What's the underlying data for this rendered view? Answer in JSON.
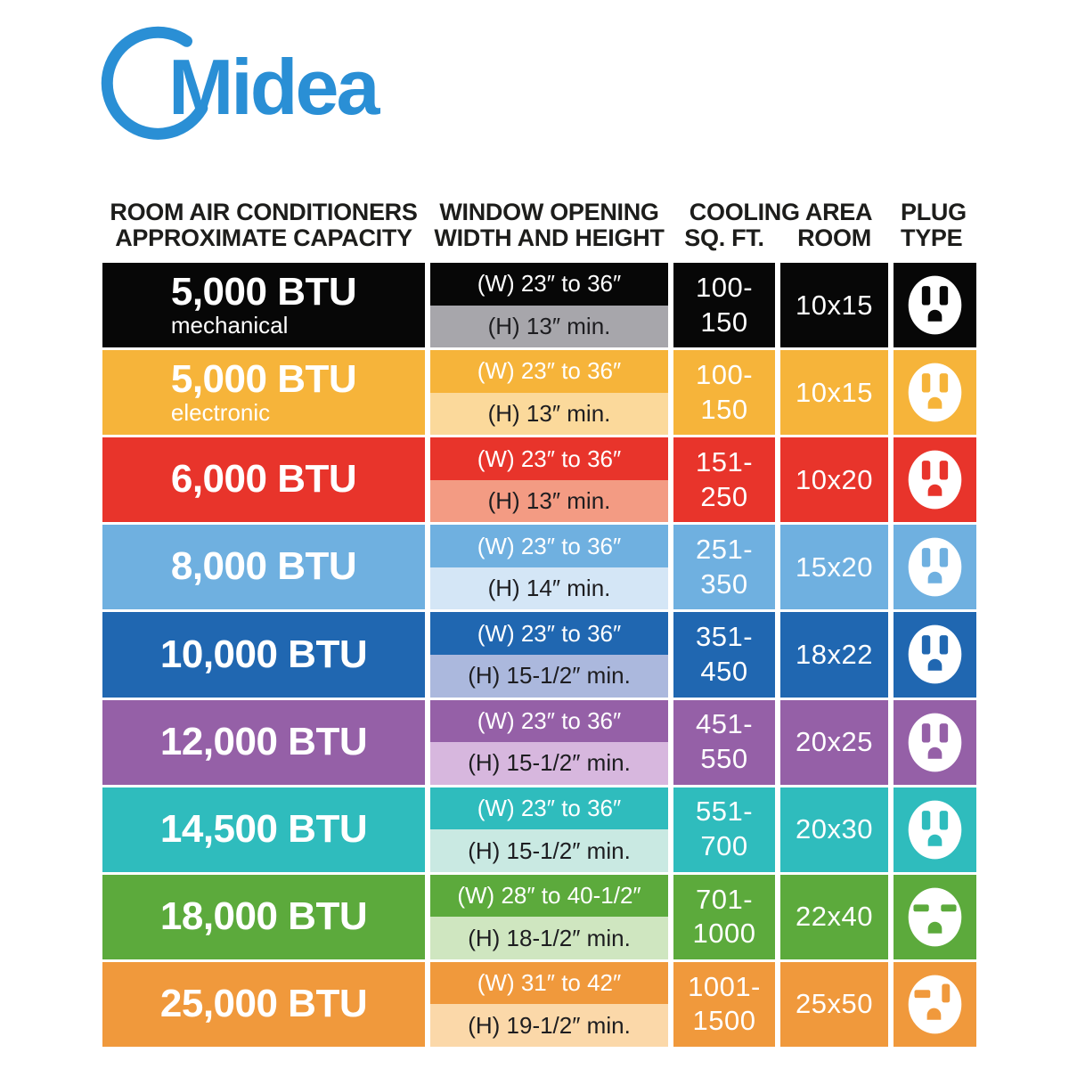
{
  "logo": {
    "brand": "Midea",
    "color": "#2a8fd5"
  },
  "colors": {
    "header_text": "#1d1d1b",
    "background": "#ffffff"
  },
  "chart_data": {
    "type": "table",
    "columns": {
      "capacity": {
        "line1": "ROOM AIR CONDITIONERS",
        "line2": "APPROXIMATE CAPACITY"
      },
      "window": {
        "line1": "WINDOW OPENING",
        "line2": "WIDTH AND HEIGHT"
      },
      "cooling": {
        "title": "COOLING AREA",
        "sub_sqft": "SQ. FT.",
        "sub_room": "ROOM"
      },
      "plug": {
        "line1": "PLUG",
        "line2": "TYPE"
      }
    },
    "rows": [
      {
        "btu": "5,000 BTU",
        "sub": "mechanical",
        "width": "(W) 23″ to 36″",
        "height": "(H) 13″ min.",
        "area": "100-150",
        "room": "10x15",
        "plug": "two-vertical-slots",
        "color": "#070707",
        "tint": "#a7a6ab"
      },
      {
        "btu": "5,000 BTU",
        "sub": "electronic",
        "width": "(W) 23″ to 36″",
        "height": "(H) 13″ min.",
        "area": "100-150",
        "room": "10x15",
        "plug": "two-vertical-slots",
        "color": "#f6b43a",
        "tint": "#fbd99b"
      },
      {
        "btu": "6,000 BTU",
        "sub": "",
        "width": "(W) 23″ to 36″",
        "height": "(H) 13″ min.",
        "area": "151-250",
        "room": "10x20",
        "plug": "two-vertical-slots",
        "color": "#e8342b",
        "tint": "#f39b83"
      },
      {
        "btu": "8,000 BTU",
        "sub": "",
        "width": "(W) 23″ to 36″",
        "height": "(H) 14″ min.",
        "area": "251-350",
        "room": "15x20",
        "plug": "two-vertical-slots",
        "color": "#6fb0e0",
        "tint": "#d4e6f6"
      },
      {
        "btu": "10,000 BTU",
        "sub": "",
        "width": "(W) 23″ to 36″",
        "height": "(H) 15-1/2″ min.",
        "area": "351-450",
        "room": "18x22",
        "plug": "two-vertical-slots",
        "color": "#2067b1",
        "tint": "#abb8dd"
      },
      {
        "btu": "12,000 BTU",
        "sub": "",
        "width": "(W) 23″ to 36″",
        "height": "(H) 15-1/2″ min.",
        "area": "451-550",
        "room": "20x25",
        "plug": "two-vertical-slots",
        "color": "#9560a7",
        "tint": "#d7b7de"
      },
      {
        "btu": "14,500 BTU",
        "sub": "",
        "width": "(W) 23″ to 36″",
        "height": "(H) 15-1/2″ min.",
        "area": "551-700",
        "room": "20x30",
        "plug": "two-vertical-slots",
        "color": "#2fbcbd",
        "tint": "#c9e9e2"
      },
      {
        "btu": "18,000 BTU",
        "sub": "",
        "width": "(W) 28″ to 40-1/2″",
        "height": "(H) 18-1/2″ min.",
        "area": "701-1000",
        "room": "22x40",
        "plug": "two-horizontal-slots",
        "color": "#5caa3c",
        "tint": "#cfe6c0"
      },
      {
        "btu": "25,000 BTU",
        "sub": "",
        "width": "(W) 31″ to 42″",
        "height": "(H) 19-1/2″ min.",
        "area": "1001-1500",
        "room": "25x50",
        "plug": "horizontal-vertical-slots",
        "color": "#f0993c",
        "tint": "#fbd8a9"
      }
    ]
  }
}
